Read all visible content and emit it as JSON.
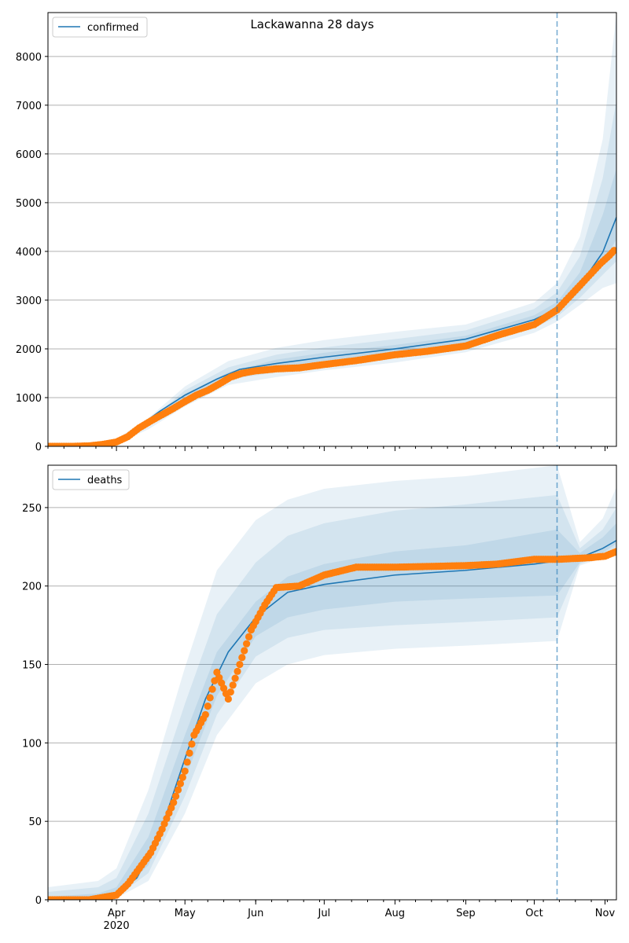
{
  "figure_title": "Lackawanna 28 days",
  "colors": {
    "model": "#1f77b4",
    "observed": "#ff7f0e",
    "band": "#1f77b4",
    "grid": "#b0b0b0"
  },
  "x_axis": {
    "month_labels": [
      "Apr",
      "May",
      "Jun",
      "Jul",
      "Aug",
      "Sep",
      "Oct",
      "Nov"
    ],
    "year_label": "2020"
  },
  "chart_data": [
    {
      "type": "line",
      "legend": [
        "confirmed"
      ],
      "legend_placement": "top-left",
      "grid": "horizontal",
      "xlim": [
        "2020-03-02",
        "2020-11-06"
      ],
      "ylim": [
        0,
        8900
      ],
      "yticks": [
        0,
        1000,
        2000,
        3000,
        4000,
        5000,
        6000,
        7000,
        8000
      ],
      "forecast_start": "2020-10-11",
      "series": [
        {
          "name": "confirmed",
          "kind": "model_median",
          "x": [
            "2020-03-02",
            "2020-03-16",
            "2020-03-24",
            "2020-04-01",
            "2020-04-10",
            "2020-04-20",
            "2020-05-01",
            "2020-05-15",
            "2020-05-25",
            "2020-06-10",
            "2020-07-01",
            "2020-08-01",
            "2020-09-01",
            "2020-10-01",
            "2020-10-11",
            "2020-10-21",
            "2020-10-31",
            "2020-11-06"
          ],
          "y": [
            0,
            10,
            30,
            90,
            380,
            720,
            1050,
            1380,
            1580,
            1700,
            1830,
            2000,
            2200,
            2600,
            2820,
            3300,
            3980,
            4700
          ]
        },
        {
          "kind": "observed",
          "x": [
            "2020-03-02",
            "2020-03-12",
            "2020-03-20",
            "2020-03-26",
            "2020-04-01",
            "2020-04-06",
            "2020-04-11",
            "2020-04-16",
            "2020-04-21",
            "2020-04-26",
            "2020-05-01",
            "2020-05-06",
            "2020-05-11",
            "2020-05-16",
            "2020-05-21",
            "2020-05-26",
            "2020-06-01",
            "2020-06-10",
            "2020-06-20",
            "2020-07-01",
            "2020-07-15",
            "2020-08-01",
            "2020-08-15",
            "2020-09-01",
            "2020-09-15",
            "2020-10-01",
            "2020-10-06",
            "2020-10-11",
            "2020-10-14",
            "2020-10-18",
            "2020-10-22",
            "2020-10-26",
            "2020-10-30",
            "2020-11-03",
            "2020-11-05"
          ],
          "y": [
            0,
            0,
            10,
            40,
            90,
            200,
            380,
            520,
            650,
            780,
            920,
            1050,
            1150,
            1280,
            1420,
            1500,
            1550,
            1590,
            1610,
            1680,
            1760,
            1880,
            1950,
            2060,
            2280,
            2500,
            2650,
            2800,
            2950,
            3150,
            3350,
            3550,
            3750,
            3920,
            4020
          ]
        }
      ],
      "intervals": [
        {
          "level": "outer",
          "x": [
            "2020-03-02",
            "2020-03-24",
            "2020-04-01",
            "2020-04-15",
            "2020-05-01",
            "2020-05-20",
            "2020-06-10",
            "2020-07-01",
            "2020-08-01",
            "2020-09-01",
            "2020-10-01",
            "2020-10-11",
            "2020-10-21",
            "2020-10-31",
            "2020-11-06"
          ],
          "lower": [
            0,
            10,
            50,
            350,
            820,
            1260,
            1420,
            1560,
            1720,
            1930,
            2330,
            2560,
            2900,
            3250,
            3350
          ],
          "upper": [
            0,
            50,
            150,
            580,
            1230,
            1750,
            2020,
            2180,
            2350,
            2500,
            2950,
            3350,
            4300,
            6300,
            8900
          ]
        },
        {
          "level": "middle",
          "x": [
            "2020-03-02",
            "2020-03-24",
            "2020-04-01",
            "2020-04-15",
            "2020-05-01",
            "2020-05-20",
            "2020-06-10",
            "2020-07-01",
            "2020-08-01",
            "2020-09-01",
            "2020-10-01",
            "2020-10-11",
            "2020-10-21",
            "2020-10-31",
            "2020-11-06"
          ],
          "lower": [
            0,
            18,
            65,
            430,
            900,
            1370,
            1520,
            1660,
            1830,
            2040,
            2430,
            2660,
            3050,
            3520,
            3800
          ],
          "upper": [
            0,
            38,
            120,
            520,
            1150,
            1620,
            1880,
            2030,
            2200,
            2380,
            2820,
            3160,
            3900,
            5500,
            7100
          ]
        },
        {
          "level": "inner",
          "x": [
            "2020-03-02",
            "2020-03-24",
            "2020-04-01",
            "2020-04-15",
            "2020-05-01",
            "2020-05-20",
            "2020-06-10",
            "2020-07-01",
            "2020-08-01",
            "2020-09-01",
            "2020-10-01",
            "2020-10-11",
            "2020-10-21",
            "2020-10-31",
            "2020-11-06"
          ],
          "lower": [
            0,
            24,
            78,
            470,
            980,
            1440,
            1610,
            1760,
            1920,
            2130,
            2520,
            2740,
            3170,
            3750,
            4250
          ],
          "upper": [
            0,
            32,
            102,
            500,
            1080,
            1520,
            1780,
            1920,
            2080,
            2270,
            2690,
            2960,
            3570,
            4750,
            5700
          ]
        }
      ]
    },
    {
      "type": "line",
      "legend": [
        "deaths"
      ],
      "legend_placement": "top-left",
      "grid": "horizontal",
      "xlim": [
        "2020-03-02",
        "2020-11-06"
      ],
      "ylim": [
        0,
        277
      ],
      "yticks": [
        0,
        50,
        100,
        150,
        200,
        250
      ],
      "forecast_start": "2020-10-11",
      "series": [
        {
          "name": "deaths",
          "kind": "model_median",
          "x": [
            "2020-03-02",
            "2020-03-24",
            "2020-04-01",
            "2020-04-10",
            "2020-04-20",
            "2020-05-01",
            "2020-05-10",
            "2020-05-20",
            "2020-06-01",
            "2020-06-15",
            "2020-07-01",
            "2020-08-01",
            "2020-09-01",
            "2020-10-01",
            "2020-10-11",
            "2020-10-21",
            "2020-10-31",
            "2020-11-06"
          ],
          "y": [
            0,
            0,
            3,
            14,
            42,
            90,
            128,
            158,
            180,
            196,
            201,
            207,
            210,
            214,
            216,
            218,
            224,
            229
          ]
        },
        {
          "kind": "observed",
          "x": [
            "2020-03-02",
            "2020-03-20",
            "2020-03-28",
            "2020-04-01",
            "2020-04-06",
            "2020-04-11",
            "2020-04-16",
            "2020-04-21",
            "2020-04-26",
            "2020-05-01",
            "2020-05-05",
            "2020-05-10",
            "2020-05-15",
            "2020-05-20",
            "2020-05-25",
            "2020-05-30",
            "2020-06-05",
            "2020-06-10",
            "2020-06-20",
            "2020-07-01",
            "2020-07-15",
            "2020-08-01",
            "2020-09-01",
            "2020-09-15",
            "2020-10-01",
            "2020-10-11",
            "2020-10-25",
            "2020-11-01",
            "2020-11-06"
          ],
          "y": [
            0,
            0,
            2,
            3,
            10,
            20,
            30,
            45,
            62,
            82,
            105,
            118,
            145,
            128,
            150,
            172,
            188,
            199,
            200,
            207,
            212,
            212,
            213,
            214,
            217,
            217,
            218,
            219,
            222
          ]
        }
      ],
      "intervals": [
        {
          "level": "outer",
          "x": [
            "2020-03-02",
            "2020-03-24",
            "2020-04-01",
            "2020-04-15",
            "2020-05-01",
            "2020-05-15",
            "2020-06-01",
            "2020-06-15",
            "2020-07-01",
            "2020-08-01",
            "2020-09-01",
            "2020-10-11",
            "2020-10-21",
            "2020-10-31",
            "2020-11-06"
          ],
          "lower": [
            0,
            0,
            1,
            12,
            55,
            105,
            138,
            150,
            156,
            160,
            162,
            165,
            213,
            218,
            222
          ],
          "upper": [
            8,
            12,
            20,
            70,
            148,
            210,
            242,
            255,
            262,
            267,
            270,
            277,
            228,
            243,
            263
          ]
        },
        {
          "level": "middle",
          "x": [
            "2020-03-02",
            "2020-03-24",
            "2020-04-01",
            "2020-04-15",
            "2020-05-01",
            "2020-05-15",
            "2020-06-01",
            "2020-06-15",
            "2020-07-01",
            "2020-08-01",
            "2020-09-01",
            "2020-10-11",
            "2020-10-21",
            "2020-10-31",
            "2020-11-06"
          ],
          "lower": [
            0,
            0,
            2,
            17,
            66,
            118,
            155,
            167,
            172,
            175,
            177,
            180,
            214,
            220,
            225
          ],
          "upper": [
            5,
            8,
            14,
            55,
            125,
            182,
            215,
            232,
            240,
            248,
            252,
            258,
            224,
            236,
            250
          ]
        },
        {
          "level": "inner",
          "x": [
            "2020-03-02",
            "2020-03-24",
            "2020-04-01",
            "2020-04-15",
            "2020-05-01",
            "2020-05-15",
            "2020-06-01",
            "2020-06-15",
            "2020-07-01",
            "2020-08-01",
            "2020-09-01",
            "2020-10-11",
            "2020-10-21",
            "2020-10-31",
            "2020-11-06"
          ],
          "lower": [
            0,
            0,
            3,
            22,
            77,
            130,
            168,
            180,
            185,
            190,
            192,
            194,
            215,
            221,
            227
          ],
          "upper": [
            2,
            4,
            8,
            40,
            105,
            158,
            190,
            206,
            214,
            222,
            226,
            236,
            221,
            231,
            240
          ]
        }
      ]
    }
  ]
}
